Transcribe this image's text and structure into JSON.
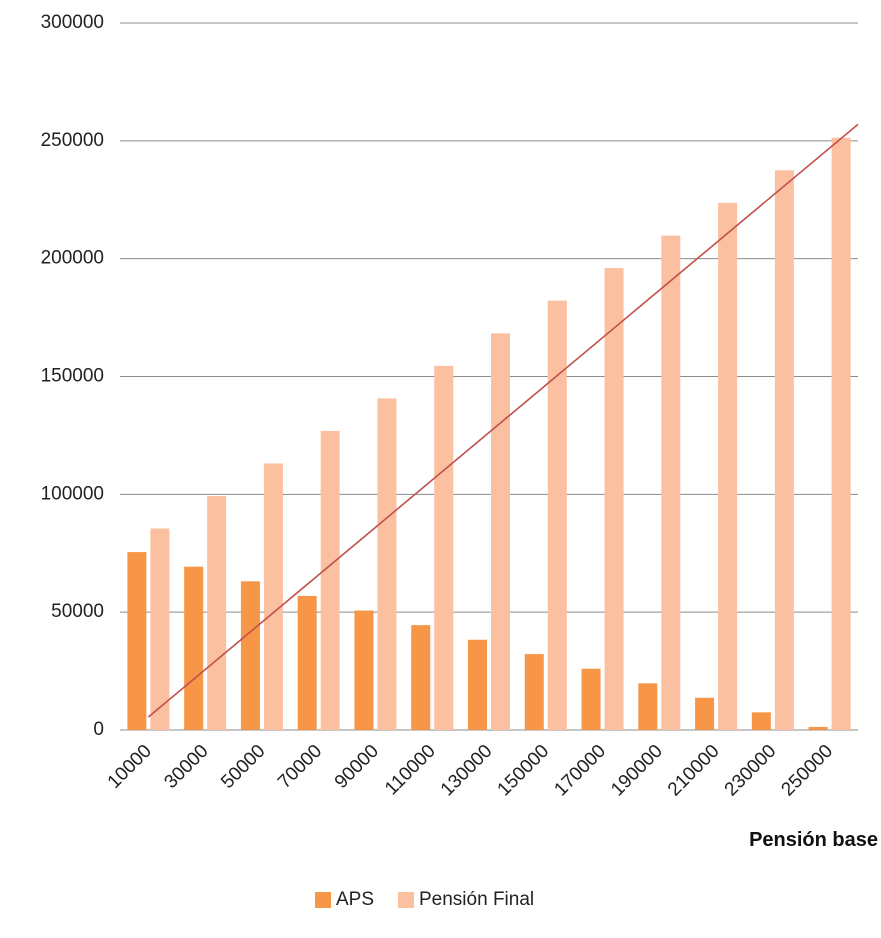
{
  "chart_data": {
    "type": "bar",
    "title": "",
    "xlabel": "Pensión base",
    "ylabel": "",
    "ylim": [
      0,
      300000
    ],
    "yticks": [
      0,
      50000,
      100000,
      150000,
      200000,
      250000,
      300000
    ],
    "grid": true,
    "legend_position": "bottom",
    "categories": [
      "10000",
      "30000",
      "50000",
      "70000",
      "90000",
      "110000",
      "130000",
      "150000",
      "170000",
      "190000",
      "210000",
      "230000",
      "250000"
    ],
    "series": [
      {
        "name": "APS",
        "color": "#F79646",
        "values": [
          75500,
          69300,
          63100,
          56900,
          50700,
          44500,
          38300,
          32200,
          26000,
          19800,
          13700,
          7500,
          1300
        ]
      },
      {
        "name": "Pensión Final",
        "color": "#FAC0A0",
        "values": [
          85500,
          99300,
          113100,
          126900,
          140700,
          154500,
          168300,
          182200,
          196000,
          209800,
          223700,
          237500,
          251300
        ]
      }
    ],
    "line": {
      "color": "#C0504D",
      "x": [
        10000,
        260000
      ],
      "y": [
        5500,
        257000
      ]
    }
  }
}
